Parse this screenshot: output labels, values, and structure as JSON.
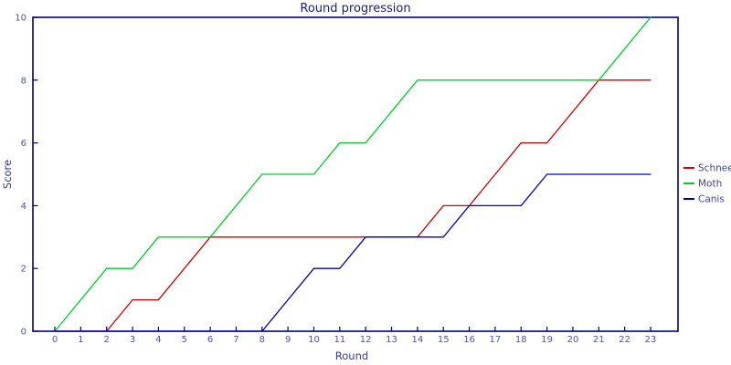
{
  "chart_data": {
    "type": "line",
    "title": "Round progression",
    "xlabel": "Round",
    "ylabel": "Score",
    "x": [
      0,
      1,
      2,
      3,
      4,
      5,
      6,
      7,
      8,
      9,
      10,
      11,
      12,
      13,
      14,
      15,
      16,
      17,
      18,
      19,
      20,
      21,
      22,
      23
    ],
    "xlim": [
      0,
      23
    ],
    "ylim": [
      0,
      10
    ],
    "yticks": [
      0,
      2,
      4,
      6,
      8,
      10
    ],
    "grid": false,
    "legend_position": "right-outside",
    "series": [
      {
        "name": "Schnee",
        "color": "#d40000",
        "values": [
          0,
          0,
          0,
          1,
          1,
          2,
          3,
          3,
          3,
          3,
          3,
          3,
          3,
          3,
          3,
          4,
          4,
          5,
          6,
          6,
          7,
          8,
          8,
          8
        ]
      },
      {
        "name": "Moth",
        "color": "#00d02a",
        "values": [
          0,
          1,
          2,
          2,
          3,
          3,
          3,
          4,
          5,
          5,
          5,
          6,
          6,
          7,
          8,
          8,
          8,
          8,
          8,
          8,
          8,
          8,
          9,
          10
        ]
      },
      {
        "name": "Canis",
        "color": "#0000cc",
        "values": [
          0,
          0,
          0,
          0,
          0,
          0,
          0,
          0,
          0,
          1,
          2,
          2,
          3,
          3,
          3,
          3,
          4,
          4,
          4,
          5,
          5,
          5,
          5,
          5
        ]
      }
    ]
  },
  "colors": {
    "axis": "#000078",
    "tick_label": "#5353a8",
    "title_text": "#1a1a8c",
    "axis_label_text": "#3a3a9a",
    "legend_text": "#4444a0",
    "background": "#ffffff"
  }
}
